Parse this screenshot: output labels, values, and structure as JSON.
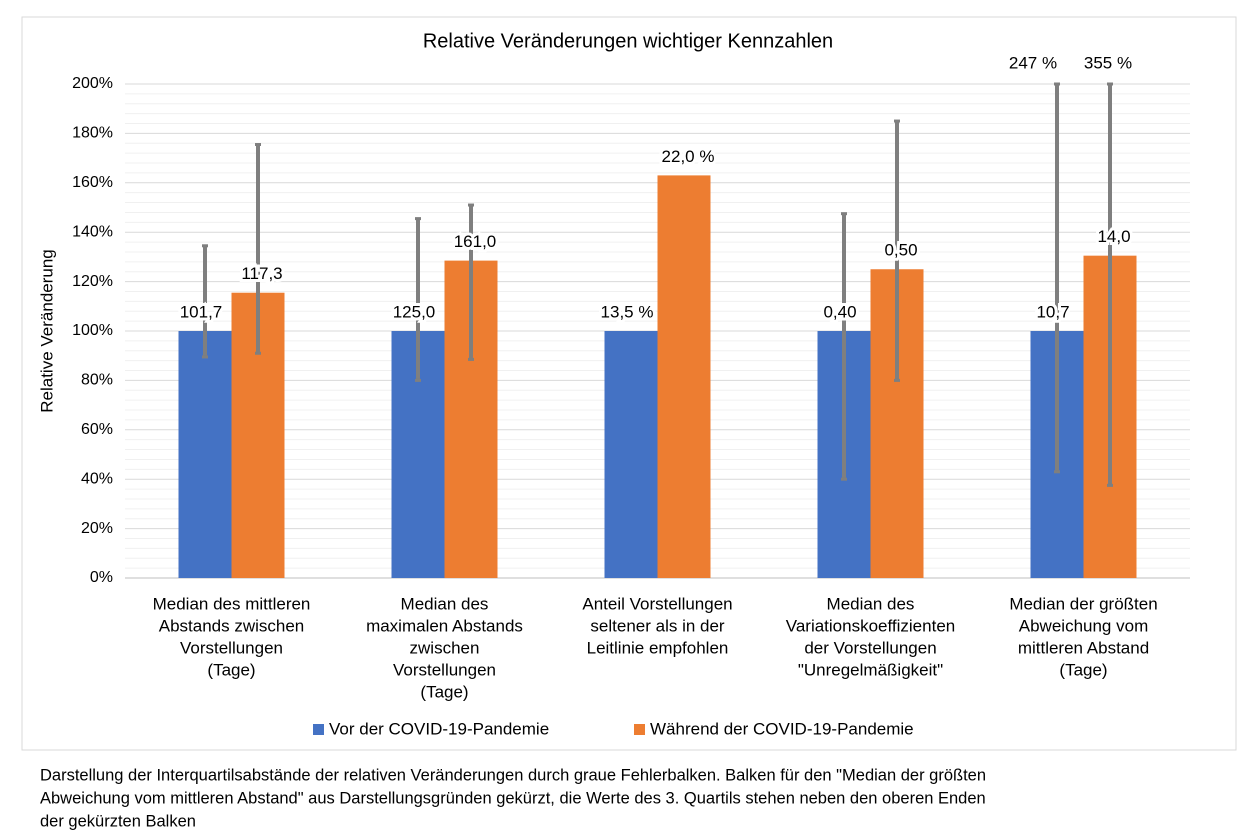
{
  "chart_data": {
    "type": "bar",
    "title": "Relative Veränderungen wichtiger Kennzahlen",
    "y_label": "Relative Veränderung",
    "categories": [
      [
        "Median des mittleren",
        "Abstands zwischen",
        "Vorstellungen",
        "(Tage)"
      ],
      [
        "Median des",
        "maximalen Abstands",
        "zwischen",
        "Vorstellungen",
        "(Tage)"
      ],
      [
        "Anteil Vorstellungen",
        "seltener als in der",
        "Leitlinie empfohlen"
      ],
      [
        "Median des",
        "Variationskoeffizienten",
        "der Vorstellungen",
        "\"Unregelmäßigkeit\""
      ],
      [
        "Median der größten",
        "Abweichung vom",
        "mittleren Abstand",
        "(Tage)"
      ]
    ],
    "series": [
      {
        "name": "Vor der COVID-19-Pandemie",
        "color": "#4472c4",
        "values": [
          100,
          100,
          100,
          100,
          100
        ],
        "lower": [
          89.5,
          80,
          null,
          40,
          43
        ],
        "upper": [
          134.5,
          145.5,
          null,
          147.5,
          200
        ],
        "labels": [
          "101,7",
          "125,0",
          "13,5 %",
          "0,40",
          "10,7"
        ],
        "upper_labels": [
          null,
          null,
          null,
          null,
          "247 %"
        ]
      },
      {
        "name": "Während der COVID-19-Pandemie",
        "color": "#ed7d31",
        "values": [
          115.5,
          128.5,
          163,
          125,
          130.5
        ],
        "lower": [
          91,
          88.5,
          null,
          80,
          37.5
        ],
        "upper": [
          175.5,
          151,
          null,
          185,
          200
        ],
        "labels": [
          "117,3",
          "161,0",
          "22,0 %",
          "0,50",
          "14,0"
        ],
        "upper_labels": [
          null,
          null,
          null,
          null,
          "355 %"
        ]
      }
    ],
    "error_color": "#7f7f7f",
    "ylim": [
      0,
      200
    ],
    "yticks": [
      {
        "value": 0,
        "label": "0%"
      },
      {
        "value": 20,
        "label": "20%"
      },
      {
        "value": 40,
        "label": "40%"
      },
      {
        "value": 60,
        "label": "60%"
      },
      {
        "value": 80,
        "label": "80%"
      },
      {
        "value": 100,
        "label": "100%"
      },
      {
        "value": 120,
        "label": "120%"
      },
      {
        "value": 140,
        "label": "140%"
      },
      {
        "value": 160,
        "label": "160%"
      },
      {
        "value": 180,
        "label": "180%"
      },
      {
        "value": 200,
        "label": "200%"
      }
    ],
    "minor_yticks": [
      4,
      8,
      12,
      16,
      24,
      28,
      32,
      36,
      44,
      48,
      52,
      56,
      64,
      68,
      72,
      76,
      84,
      88,
      92,
      96,
      104,
      108,
      112,
      116,
      124,
      128,
      132,
      136,
      144,
      148,
      152,
      156,
      164,
      168,
      172,
      176,
      184,
      188,
      192,
      196
    ],
    "grid": true,
    "legend": "bottom",
    "note": [
      "Darstellung der Interquartilsabstände der relativen Veränderungen durch graue Fehlerbalken. Balken für den \"Median der größten",
      "Abweichung vom mittleren Abstand\" aus Darstellungsgründen gekürzt, die Werte des 3. Quartils stehen neben den oberen Enden",
      "der gekürzten Balken"
    ]
  }
}
